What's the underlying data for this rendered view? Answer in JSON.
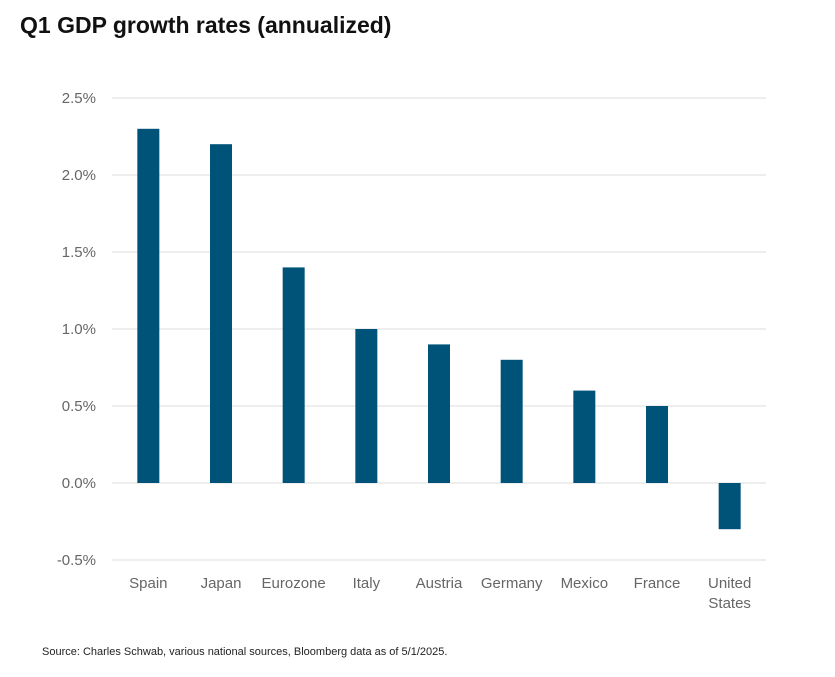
{
  "chart_data": {
    "type": "bar",
    "title": "Q1 GDP growth rates (annualized)",
    "categories": [
      "Spain",
      "Japan",
      "Eurozone",
      "Italy",
      "Austria",
      "Germany",
      "Mexico",
      "France",
      "United States"
    ],
    "values": [
      2.3,
      2.2,
      1.4,
      1.0,
      0.9,
      0.8,
      0.6,
      0.5,
      -0.3
    ],
    "ylim": [
      -0.5,
      2.5
    ],
    "yticks": [
      "-0.5%",
      "0.0%",
      "0.5%",
      "1.0%",
      "1.5%",
      "2.0%",
      "2.5%"
    ],
    "grid": true,
    "bar_color": "#005378",
    "xlabel": "",
    "ylabel": ""
  },
  "source": "Source: Charles Schwab, various national sources, Bloomberg data as of 5/1/2025."
}
